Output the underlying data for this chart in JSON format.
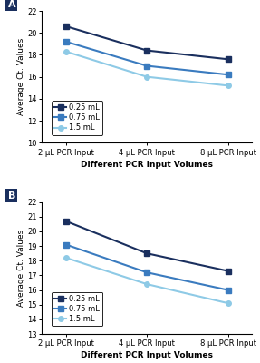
{
  "panel_A": {
    "label": "A",
    "x_positions": [
      0,
      1,
      2
    ],
    "x_ticklabels": [
      "2 μL PCR Input",
      "4 μL PCR Input",
      "8 μL PCR Input"
    ],
    "series": [
      {
        "label": "0.25 mL",
        "values": [
          20.6,
          18.4,
          17.6
        ],
        "color": "#1a2f5e",
        "marker": "s",
        "lw": 1.5
      },
      {
        "label": "0.75 mL",
        "values": [
          19.2,
          17.0,
          16.2
        ],
        "color": "#3a7bbf",
        "marker": "s",
        "lw": 1.5
      },
      {
        "label": "1.5 mL",
        "values": [
          18.3,
          16.0,
          15.2
        ],
        "color": "#8ecae6",
        "marker": "o",
        "lw": 1.5
      }
    ],
    "ylim": [
      10,
      22
    ],
    "yticks": [
      10,
      12,
      14,
      16,
      18,
      20,
      22
    ],
    "ylabel": "Average Ct. Values",
    "xlabel": "Different PCR Input Volumes"
  },
  "panel_B": {
    "label": "B",
    "x_positions": [
      0,
      1,
      2
    ],
    "x_ticklabels": [
      "2 μL PCR Input",
      "4 μL PCR Input",
      "8 μL PCR Input"
    ],
    "series": [
      {
        "label": "0.25 mL",
        "values": [
          20.7,
          18.5,
          17.3
        ],
        "color": "#1a2f5e",
        "marker": "s",
        "lw": 1.5
      },
      {
        "label": "0.75 mL",
        "values": [
          19.1,
          17.2,
          16.0
        ],
        "color": "#3a7bbf",
        "marker": "s",
        "lw": 1.5
      },
      {
        "label": "1.5 mL",
        "values": [
          18.2,
          16.4,
          15.1
        ],
        "color": "#8ecae6",
        "marker": "o",
        "lw": 1.5
      }
    ],
    "ylim": [
      13,
      22
    ],
    "yticks": [
      13,
      14,
      15,
      16,
      17,
      18,
      19,
      20,
      21,
      22
    ],
    "ylabel": "Average Ct. Values",
    "xlabel": "Different PCR Input Volumes"
  },
  "fig_background": "#ffffff",
  "plot_background": "#ffffff",
  "panel_label_bg": "#1a2f5e",
  "panel_label_fg": "#ffffff",
  "panel_label_fontsize": 8,
  "axis_label_fontsize": 6.5,
  "tick_fontsize": 6,
  "legend_fontsize": 6,
  "marker_size": 4
}
